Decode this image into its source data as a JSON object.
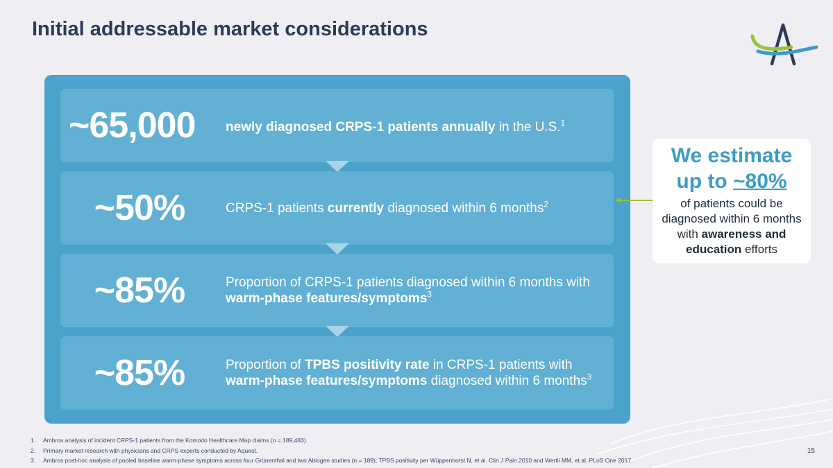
{
  "slide": {
    "title": "Initial addressable market considerations",
    "page_number": "15"
  },
  "funnel": [
    {
      "value": "~65,000",
      "parts": [
        {
          "text": "newly diagnosed CRPS-1 patients annually",
          "bold": true
        },
        {
          "text": " in the U.S.",
          "bold": false
        },
        {
          "text": "1",
          "sup": true
        }
      ]
    },
    {
      "value": "~50%",
      "parts": [
        {
          "text": "CRPS-1 patients ",
          "bold": false
        },
        {
          "text": "currently",
          "bold": true
        },
        {
          "text": " diagnosed within 6 months",
          "bold": false
        },
        {
          "text": "2",
          "sup": true
        }
      ]
    },
    {
      "value": "~85%",
      "parts": [
        {
          "text": "Proportion of CRPS-1 patients diagnosed within 6 months with ",
          "bold": false
        },
        {
          "text": "warm-phase features/symptoms",
          "bold": true
        },
        {
          "text": "3",
          "sup": true
        }
      ]
    },
    {
      "value": "~85%",
      "parts": [
        {
          "text": "Proportion of ",
          "bold": false
        },
        {
          "text": "TPBS positivity rate",
          "bold": true
        },
        {
          "text": " in CRPS-1 patients with ",
          "bold": false
        },
        {
          "text": "warm-phase features/symptoms",
          "bold": true
        },
        {
          "text": " diagnosed within 6 months",
          "bold": false
        },
        {
          "text": "3",
          "sup": true
        }
      ]
    }
  ],
  "callout": {
    "headline_line1": "We estimate",
    "headline_prefix": "up to ",
    "headline_value": "~80%",
    "body_plain1": "of patients could be diagnosed within 6 months with ",
    "body_bold": "awareness and education",
    "body_plain2": " efforts"
  },
  "footnotes": [
    {
      "num": "1.",
      "text": "Ambros analysis of incident CRPS-1 patients from the Komodo Healthcare Map claims (n = 189,483)."
    },
    {
      "num": "2.",
      "text": "Primary market research with physicians and CRPS experts conducted by Aquest."
    },
    {
      "num": "3.",
      "text": "Ambros post-hoc analysis of pooled baseline warm-phase symptoms across four Grünenthal and two Abiogen studies (n = 189); TPBS positivity per Wüppenhorst N, et al. Clin J Pain 2010 and Wertli MM, et al. PLoS One 2017."
    }
  ],
  "colors": {
    "panel": "#4ba3cb",
    "row": "#62b0d4",
    "accent_blue": "#3d9cc6",
    "accent_green": "#9bc23c",
    "title": "#2e3b57"
  },
  "icons": {
    "logo": "ambros-logo",
    "connector": "chevron-down-icon",
    "pointer": "arrow-left-icon"
  }
}
